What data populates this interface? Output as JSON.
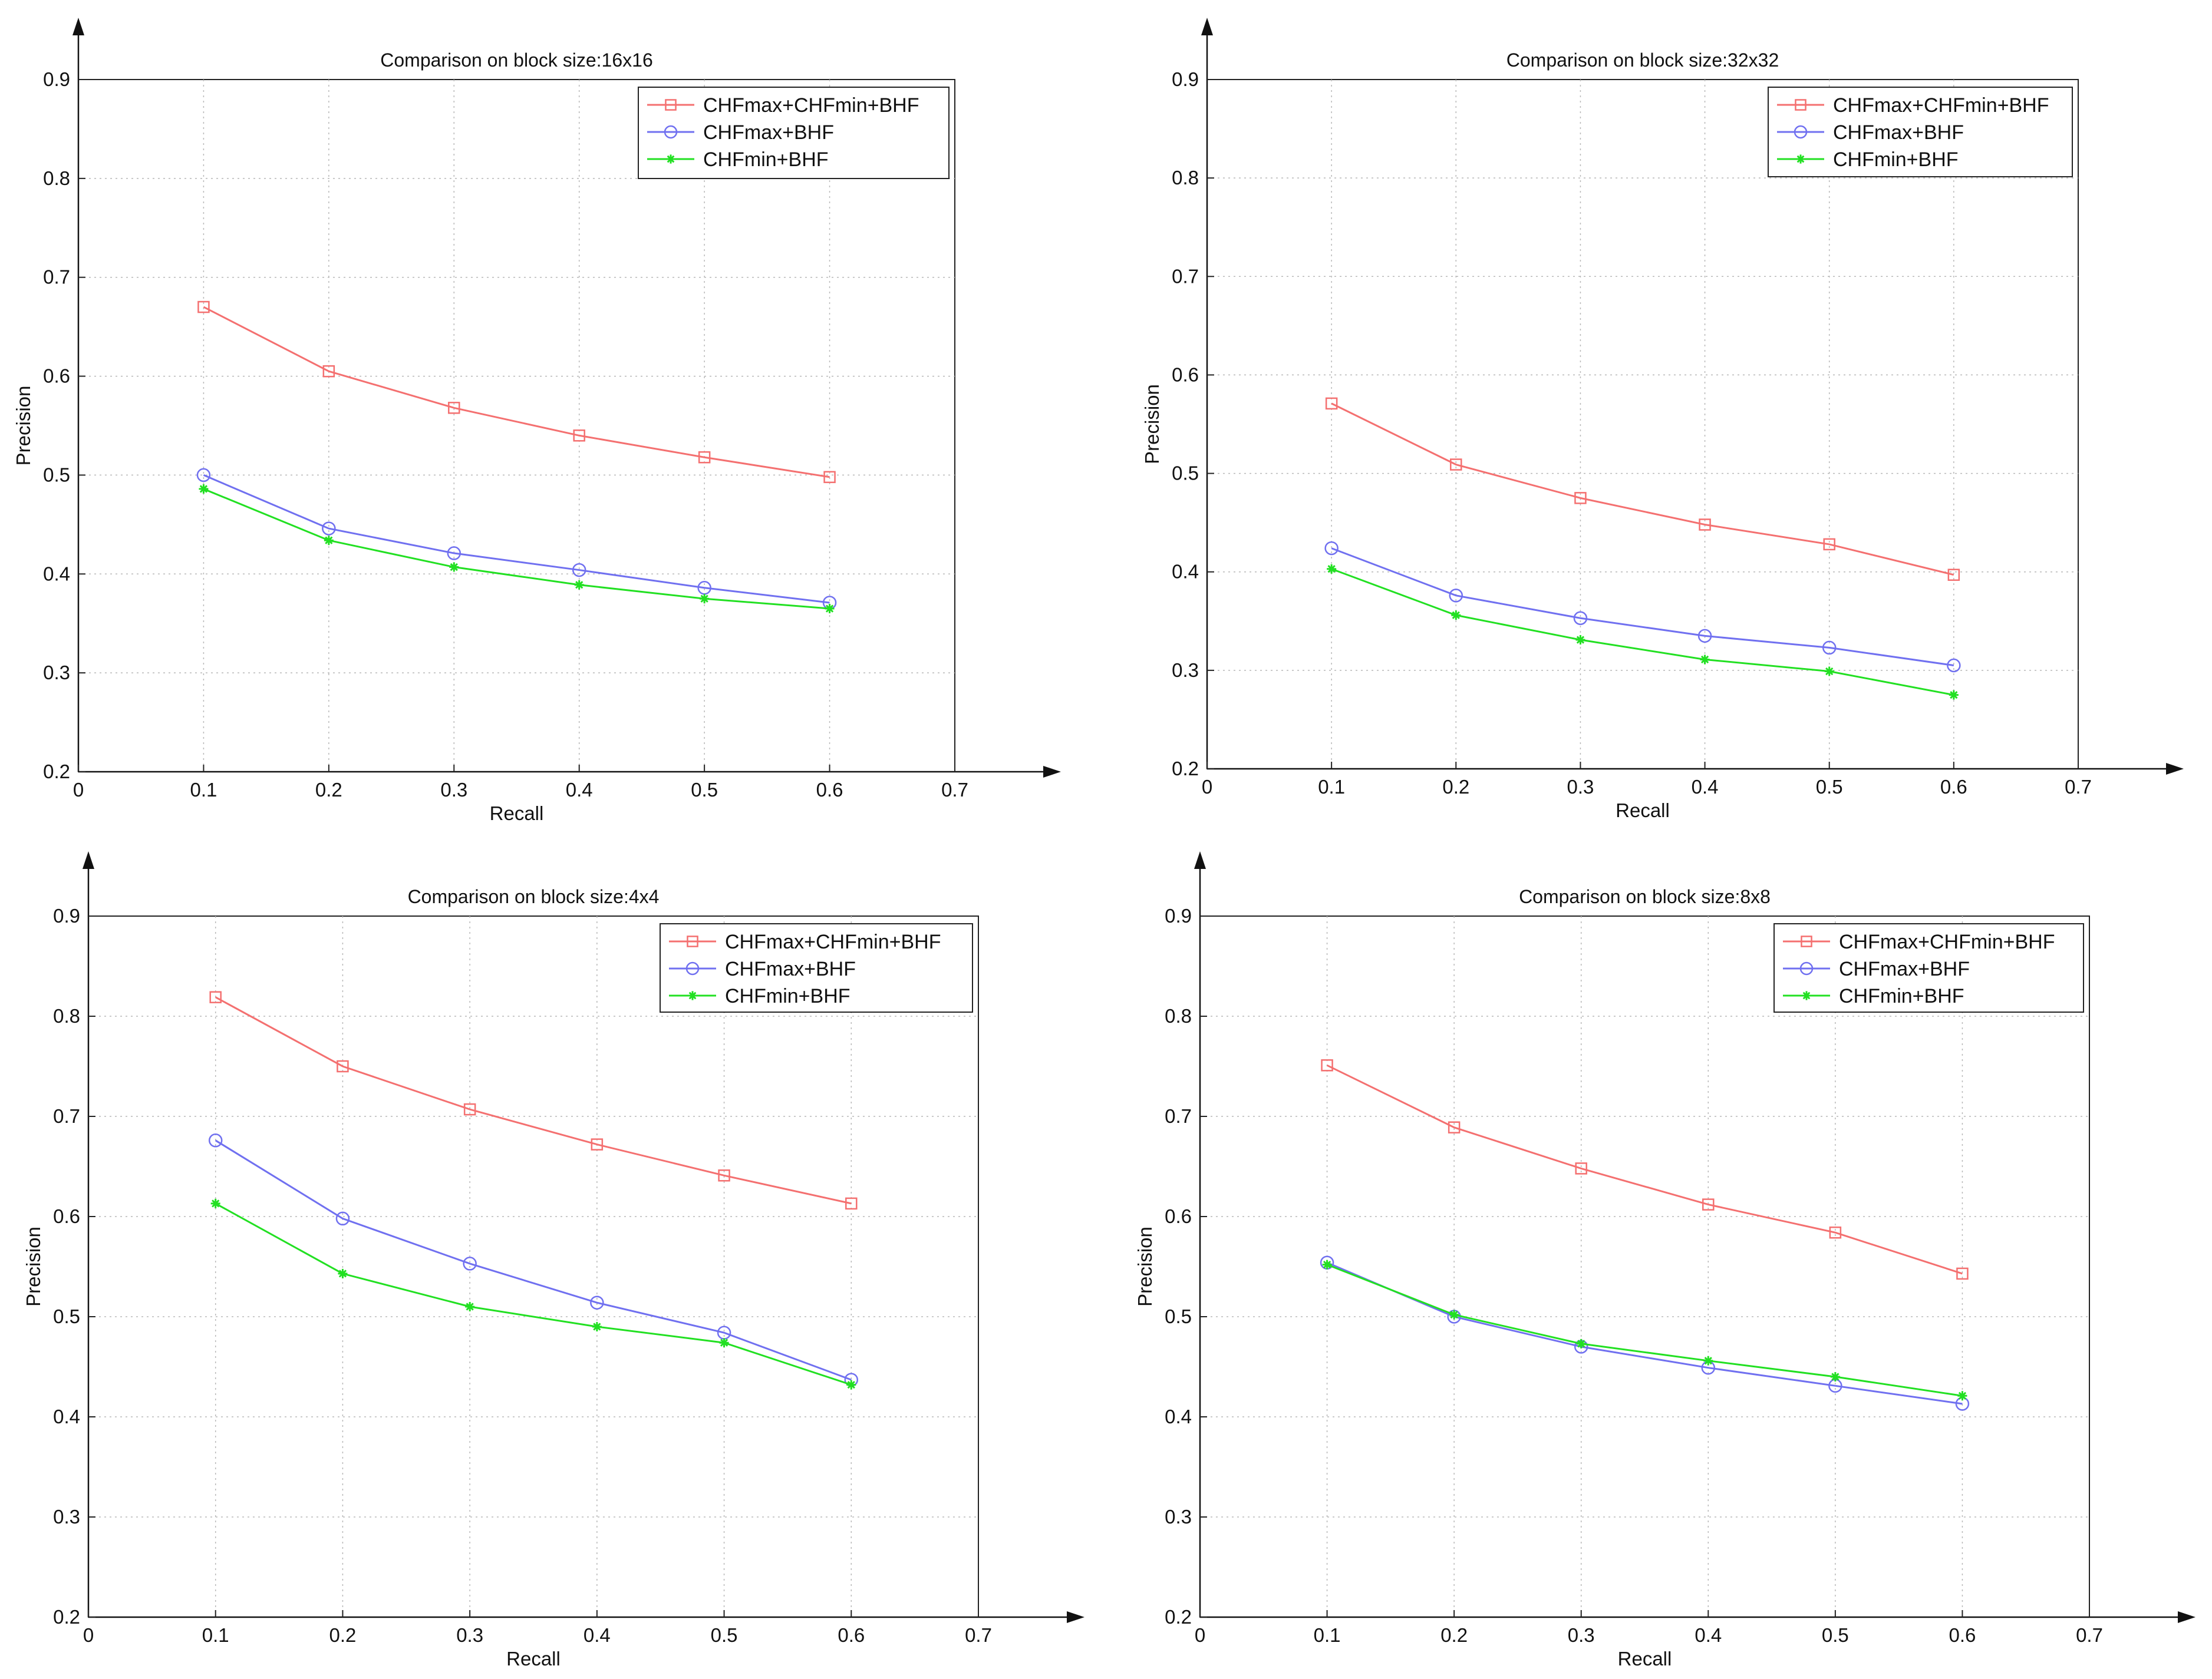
{
  "chart_data": [
    {
      "type": "line",
      "title": "Comparison on block size:16x16",
      "xlabel": "Recall",
      "ylabel": "Precision",
      "xlim": [
        0,
        0.7
      ],
      "ylim": [
        0.2,
        0.9
      ],
      "x_ticks": [
        "0",
        "0.1",
        "0.2",
        "0.3",
        "0.4",
        "0.5",
        "0.6",
        "0.7"
      ],
      "y_ticks": [
        "0.2",
        "0.3",
        "0.4",
        "0.5",
        "0.6",
        "0.7",
        "0.8",
        "0.9"
      ],
      "grid": true,
      "legend_position": "top-right",
      "x": [
        0.1,
        0.2,
        0.3,
        0.4,
        0.5,
        0.6
      ],
      "series": [
        {
          "name": "CHFmax+CHFmin+BHF",
          "color": "#f47070",
          "marker": "square",
          "values": [
            0.67,
            0.605,
            0.568,
            0.54,
            0.518,
            0.498
          ]
        },
        {
          "name": "CHFmax+BHF",
          "color": "#7070f0",
          "marker": "circle",
          "values": [
            0.5,
            0.446,
            0.421,
            0.404,
            0.386,
            0.371
          ]
        },
        {
          "name": "CHFmin+BHF",
          "color": "#22e022",
          "marker": "star",
          "values": [
            0.486,
            0.434,
            0.407,
            0.389,
            0.375,
            0.365
          ]
        }
      ]
    },
    {
      "type": "line",
      "title": "Comparison on block size:32x32",
      "xlabel": "Recall",
      "ylabel": "Precision",
      "xlim": [
        0,
        0.7
      ],
      "ylim": [
        0.2,
        0.9
      ],
      "x_ticks": [
        "0",
        "0.1",
        "0.2",
        "0.3",
        "0.4",
        "0.5",
        "0.6",
        "0.7"
      ],
      "y_ticks": [
        "0.2",
        "0.3",
        "0.4",
        "0.5",
        "0.6",
        "0.7",
        "0.8",
        "0.9"
      ],
      "grid": true,
      "legend_position": "top-right",
      "x": [
        0.1,
        0.2,
        0.3,
        0.4,
        0.5,
        0.6
      ],
      "series": [
        {
          "name": "CHFmax+CHFmin+BHF",
          "color": "#f47070",
          "marker": "square",
          "values": [
            0.571,
            0.509,
            0.475,
            0.448,
            0.428,
            0.397
          ]
        },
        {
          "name": "CHFmax+BHF",
          "color": "#7070f0",
          "marker": "circle",
          "values": [
            0.424,
            0.376,
            0.353,
            0.335,
            0.323,
            0.305
          ]
        },
        {
          "name": "CHFmin+BHF",
          "color": "#22e022",
          "marker": "star",
          "values": [
            0.403,
            0.356,
            0.331,
            0.311,
            0.299,
            0.275
          ]
        }
      ]
    },
    {
      "type": "line",
      "title": "Comparison on block size:4x4",
      "xlabel": "Recall",
      "ylabel": "Precision",
      "xlim": [
        0,
        0.7
      ],
      "ylim": [
        0.2,
        0.9
      ],
      "x_ticks": [
        "0",
        "0.1",
        "0.2",
        "0.3",
        "0.4",
        "0.5",
        "0.6",
        "0.7"
      ],
      "y_ticks": [
        "0.2",
        "0.3",
        "0.4",
        "0.5",
        "0.6",
        "0.7",
        "0.8",
        "0.9"
      ],
      "grid": true,
      "legend_position": "top-right",
      "x": [
        0.1,
        0.2,
        0.3,
        0.4,
        0.5,
        0.6
      ],
      "series": [
        {
          "name": "CHFmax+CHFmin+BHF",
          "color": "#f47070",
          "marker": "square",
          "values": [
            0.819,
            0.75,
            0.707,
            0.672,
            0.641,
            0.613
          ]
        },
        {
          "name": "CHFmax+BHF",
          "color": "#7070f0",
          "marker": "circle",
          "values": [
            0.676,
            0.598,
            0.553,
            0.514,
            0.484,
            0.437
          ]
        },
        {
          "name": "CHFmin+BHF",
          "color": "#22e022",
          "marker": "star",
          "values": [
            0.613,
            0.543,
            0.51,
            0.49,
            0.474,
            0.432
          ]
        }
      ]
    },
    {
      "type": "line",
      "title": "Comparison on block size:8x8",
      "xlabel": "Recall",
      "ylabel": "Precision",
      "xlim": [
        0,
        0.7
      ],
      "ylim": [
        0.2,
        0.9
      ],
      "x_ticks": [
        "0",
        "0.1",
        "0.2",
        "0.3",
        "0.4",
        "0.5",
        "0.6",
        "0.7"
      ],
      "y_ticks": [
        "0.2",
        "0.3",
        "0.4",
        "0.5",
        "0.6",
        "0.7",
        "0.8",
        "0.9"
      ],
      "grid": true,
      "legend_position": "top-right",
      "x": [
        0.1,
        0.2,
        0.3,
        0.4,
        0.5,
        0.6
      ],
      "series": [
        {
          "name": "CHFmax+CHFmin+BHF",
          "color": "#f47070",
          "marker": "square",
          "values": [
            0.751,
            0.689,
            0.648,
            0.612,
            0.584,
            0.543
          ]
        },
        {
          "name": "CHFmax+BHF",
          "color": "#7070f0",
          "marker": "circle",
          "values": [
            0.554,
            0.5,
            0.47,
            0.449,
            0.431,
            0.413
          ]
        },
        {
          "name": "CHFmin+BHF",
          "color": "#22e022",
          "marker": "star",
          "values": [
            0.552,
            0.502,
            0.473,
            0.456,
            0.44,
            0.421
          ]
        }
      ]
    }
  ]
}
